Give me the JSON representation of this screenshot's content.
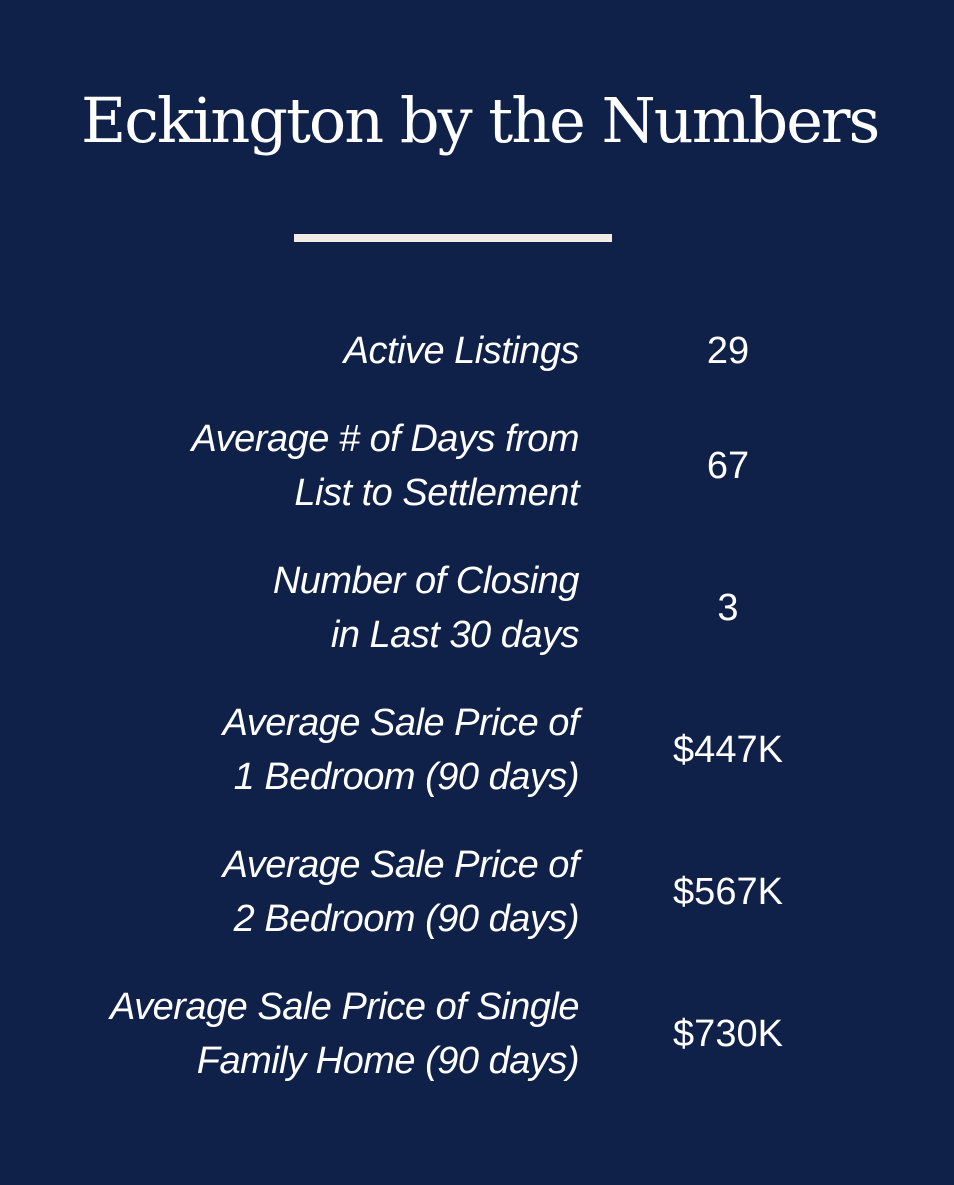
{
  "title": "Eckington by the Numbers",
  "stats": [
    {
      "label_lines": [
        "Active Listings"
      ],
      "value": "29"
    },
    {
      "label_lines": [
        "Average # of Days from",
        "List to Settlement"
      ],
      "value": "67"
    },
    {
      "label_lines": [
        "Number of Closing",
        "in Last 30 days"
      ],
      "value": "3"
    },
    {
      "label_lines": [
        "Average Sale Price of",
        "1 Bedroom (90 days)"
      ],
      "value": "$447K"
    },
    {
      "label_lines": [
        "Average Sale Price of",
        "2 Bedroom (90 days)"
      ],
      "value": "$567K"
    },
    {
      "label_lines": [
        "Average Sale Price of Single",
        "Family Home (90 days)"
      ],
      "value": "$730K"
    }
  ],
  "colors": {
    "background": "#0f2049",
    "text": "#ffffff",
    "rule": "#f3ece6"
  }
}
